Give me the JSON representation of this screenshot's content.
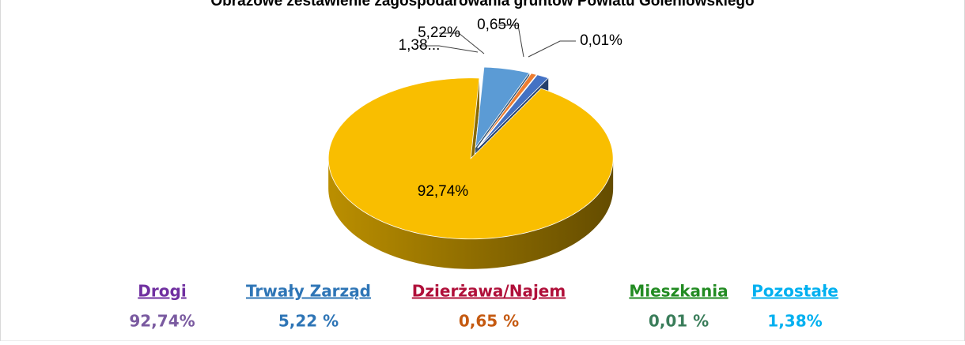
{
  "chart_data": {
    "type": "pie3d",
    "title": "Obrazowe zestawienie zagospodarowania gruntów Powiatu Goleniowskiego",
    "categories": [
      "Drogi",
      "Trwały Zarząd",
      "Dzierżawa/Najem",
      "Mieszkania",
      "Pozostałe"
    ],
    "values": [
      92.74,
      5.22,
      0.65,
      0.01,
      1.38
    ],
    "value_labels": [
      "92,74%",
      "5,22%",
      "0,65%",
      "0,01%",
      "1,38..."
    ],
    "colors": [
      "#f9be00",
      "#5b9bd5",
      "#ed7d31",
      "#a5a5a5",
      "#4472c4"
    ],
    "legend_value_labels": [
      "92,74%",
      "5,22 %",
      "0,65 %",
      "0,01 %",
      "1,38%"
    ],
    "legend_name_colors": [
      "#7030a0",
      "#2e75b6",
      "#b0103a",
      "#228b22",
      "#00b0f0"
    ],
    "legend_value_colors": [
      "#7a5aa0",
      "#2e75b6",
      "#c55a11",
      "#3a7d5a",
      "#00b0f0"
    ],
    "legend": "bottom"
  }
}
